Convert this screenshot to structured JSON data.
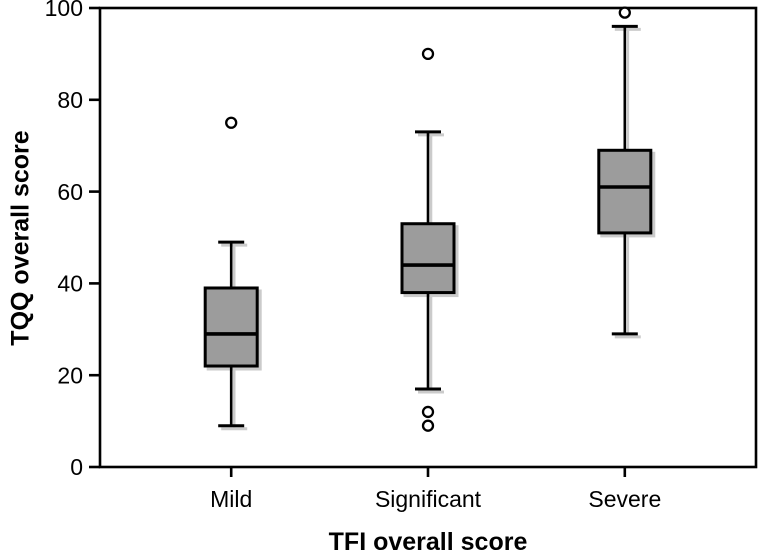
{
  "chart_data": {
    "type": "box",
    "title": "",
    "xlabel": "TFI overall score",
    "ylabel": "TQQ overall score",
    "categories": [
      "Mild",
      "Significant",
      "Severe"
    ],
    "y_axis": {
      "min": 0,
      "max": 100,
      "ticks": [
        0,
        20,
        40,
        60,
        80,
        100
      ]
    },
    "x_axis_label": "TFI overall score",
    "y_axis_label": "TQQ overall score",
    "series": [
      {
        "category": "Mild",
        "min": 9,
        "q1": 22,
        "median": 29,
        "q3": 39,
        "max": 49,
        "outliers": [
          75
        ]
      },
      {
        "category": "Significant",
        "min": 17,
        "q1": 38,
        "median": 44,
        "q3": 53,
        "max": 73,
        "outliers": [
          90,
          12,
          9
        ]
      },
      {
        "category": "Severe",
        "min": 29,
        "q1": 51,
        "median": 61,
        "q3": 69,
        "max": 96,
        "outliers": [
          99
        ]
      }
    ],
    "style": {
      "box_fill": "#9c9c9c",
      "line_color": "#000000",
      "shadow_color": "#cbcbcb",
      "outlier_fill": "#ffffff",
      "background": "#ffffff"
    },
    "layout_hints": {
      "grid": false,
      "frame": true,
      "legend": "none"
    }
  }
}
